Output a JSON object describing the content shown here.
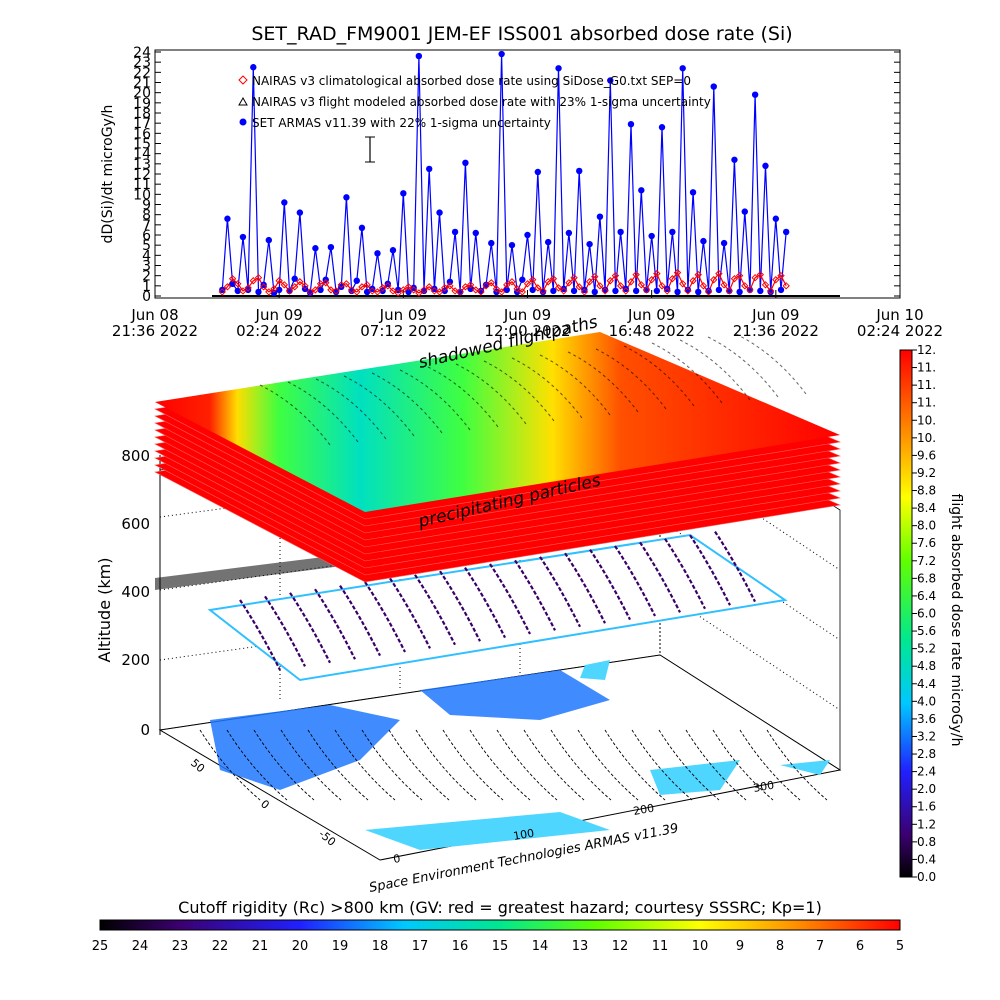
{
  "chart_data": [
    {
      "type": "line",
      "title": "SET_RAD_FM9001  JEM-EF ISS001 absorbed dose rate (Si)",
      "ylabel": "dD(Si)/dt microGy/h",
      "ylim": [
        0,
        24
      ],
      "y_ticks": [
        "0",
        "1",
        "2",
        "3",
        "4",
        "5",
        "6",
        "7",
        "8",
        "9",
        "10",
        "11",
        "12",
        "13",
        "14",
        "15",
        "16",
        "17",
        "18",
        "19",
        "20",
        "21",
        "22",
        "23",
        "24"
      ],
      "xlim_hours": [
        0,
        28.8
      ],
      "x_ticks": [
        {
          "line1": "Jun 08",
          "line2": "21:36 2022",
          "t": 0
        },
        {
          "line1": "Jun 09",
          "line2": "02:24 2022",
          "t": 4.8
        },
        {
          "line1": "Jun 09",
          "line2": "07:12 2022",
          "t": 9.6
        },
        {
          "line1": "Jun 09",
          "line2": "12:00 2022",
          "t": 14.4
        },
        {
          "line1": "Jun 09",
          "line2": "16:48 2022",
          "t": 19.2
        },
        {
          "line1": "Jun 09",
          "line2": "21:36 2022",
          "t": 24
        },
        {
          "line1": "Jun 10",
          "line2": "02:24 2022",
          "t": 28.8
        }
      ],
      "legend": [
        {
          "text": "NAIRAS v3 climatological absorbed dose rate using SiDose_G0.txt SEP=0",
          "symbol": "diamond",
          "color": "#ff0000"
        },
        {
          "text": "NAIRAS v3 flight modeled absorbed dose rate with 23% 1-sigma uncertainty",
          "symbol": "triangle",
          "color": "#000000"
        },
        {
          "text": "SET ARMAS v11.39 with 22% 1-sigma uncertainty",
          "symbol": "dot",
          "color": "#0000ff"
        }
      ],
      "series": [
        {
          "name": "SET ARMAS v11.39 with 22% 1-sigma uncertainty",
          "color": "#0000ff",
          "t_start": 2.6,
          "t_step": 0.2,
          "values": [
            0.6,
            7.6,
            1.2,
            0.5,
            5.8,
            0.6,
            22.5,
            0.4,
            1.1,
            5.5,
            0.3,
            0.6,
            9.2,
            0.5,
            1.7,
            8.2,
            0.7,
            0.3,
            4.7,
            0.6,
            1.6,
            4.8,
            0.4,
            0.9,
            9.7,
            0.5,
            1.5,
            6.7,
            0.4,
            0.7,
            4.2,
            0.5,
            1.2,
            4.5,
            0.6,
            10.1,
            0.4,
            0.8,
            23.6,
            0.5,
            12.5,
            0.7,
            8.2,
            0.5,
            1.4,
            6.3,
            0.4,
            13.1,
            0.7,
            6.2,
            0.5,
            1.1,
            5.2,
            0.4,
            23.8,
            0.6,
            5.0,
            0.4,
            1.6,
            6.0,
            0.6,
            12.2,
            0.4,
            5.3,
            0.5,
            22.4,
            0.7,
            6.2,
            0.5,
            12.3,
            0.6,
            5.1,
            0.4,
            7.8,
            0.6,
            21.2,
            0.5,
            6.3,
            0.7,
            16.9,
            0.5,
            10.4,
            0.6,
            5.9,
            0.5,
            16.6,
            0.7,
            6.3,
            0.4,
            22.4,
            0.6,
            10.2,
            0.4,
            5.4,
            0.5,
            20.6,
            0.6,
            5.2,
            0.5,
            13.4,
            0.4,
            8.3,
            0.6,
            19.8,
            0.5,
            12.8,
            0.4,
            7.6,
            0.6,
            6.3
          ]
        },
        {
          "name": "NAIRAS v3 climatological absorbed dose rate using SiDose_G0.txt SEP=0",
          "color": "#ff0000",
          "t_start": 2.6,
          "t_step": 0.2,
          "values": [
            0.4,
            0.9,
            1.7,
            1.2,
            0.5,
            0.8,
            1.5,
            1.8,
            0.9,
            0.4,
            0.7,
            1.5,
            1.1,
            0.5,
            0.9,
            1.4,
            1.0,
            0.4,
            0.6,
            1.2,
            1.3,
            0.6,
            0.5,
            1.1,
            1.2,
            0.6,
            0.4,
            0.9,
            1.1,
            0.5,
            0.4,
            0.8,
            1.0,
            0.5,
            0.3,
            0.6,
            0.9,
            0.6,
            0.3,
            0.6,
            0.9,
            0.5,
            0.4,
            0.8,
            1.0,
            0.5,
            0.4,
            0.9,
            1.1,
            0.6,
            0.4,
            1.0,
            1.3,
            0.7,
            0.4,
            1.1,
            1.4,
            0.7,
            0.4,
            1.2,
            1.6,
            0.8,
            0.5,
            1.4,
            1.7,
            0.8,
            0.5,
            1.3,
            1.8,
            0.9,
            0.4,
            1.4,
            1.9,
            1.0,
            0.5,
            1.5,
            2.0,
            1.0,
            0.5,
            1.4,
            2.1,
            1.1,
            0.6,
            1.6,
            2.2,
            1.0,
            0.5,
            1.7,
            2.3,
            1.2,
            0.5,
            1.5,
            2.1,
            1.0,
            0.4,
            1.6,
            2.2,
            1.1,
            0.5,
            1.7,
            2.0,
            1.0,
            0.6,
            1.8,
            2.1,
            1.1,
            0.5,
            1.6,
            2.0,
            1.0
          ]
        }
      ]
    },
    {
      "type": "heatmap",
      "title": "3D dose rate view over ISS groundtrack",
      "labels": {
        "shadowed": "shadowed flightpaths",
        "precip": "precipitating particles",
        "zlabel": "Altitude (km)",
        "credit": "Space Environment Technologies ARMAS v11.39"
      },
      "z_ticks": [
        "0",
        "200",
        "400",
        "600",
        "800"
      ],
      "lat_ticks": [
        "50",
        "0",
        "-50"
      ],
      "lon_ticks": [
        "0",
        "100",
        "200",
        "300"
      ],
      "right_colorbar": {
        "title": "flight absorbed dose rate microGy/h",
        "ticks": [
          "0.0",
          "0.4",
          "0.8",
          "1.2",
          "1.6",
          "2.0",
          "2.4",
          "2.8",
          "3.2",
          "3.6",
          "4.0",
          "4.4",
          "4.8",
          "5.2",
          "5.6",
          "6.0",
          "6.4",
          "6.8",
          "7.2",
          "7.6",
          "8.0",
          "8.4",
          "8.8",
          "9.2",
          "9.6",
          "10.",
          "10.",
          "11.",
          "11.",
          "11.",
          "12."
        ]
      },
      "bottom_colorbar": {
        "title": "Cutoff rigidity (Rc) >800 km (GV: red = greatest hazard; courtesy SSSRC; Kp=1)",
        "ticks": [
          "25",
          "24",
          "23",
          "22",
          "21",
          "20",
          "19",
          "18",
          "17",
          "16",
          "15",
          "14",
          "13",
          "12",
          "11",
          "10",
          "9",
          "8",
          "7",
          "6",
          "5"
        ]
      }
    }
  ]
}
